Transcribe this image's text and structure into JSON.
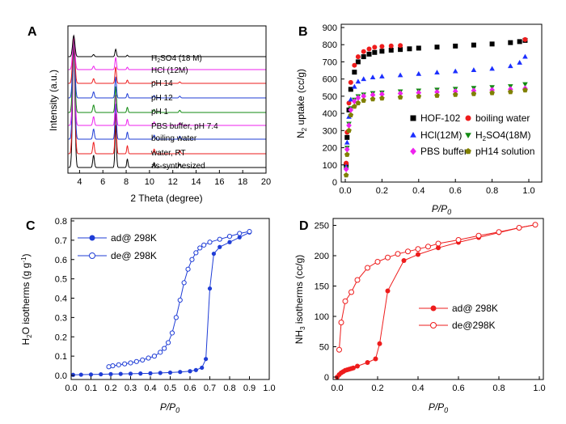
{
  "colors": {
    "black": "#000000",
    "red": "#ee1c1c",
    "blue": "#1f3dd6",
    "bright_blue": "#1c2fff",
    "green": "#118a11",
    "magenta": "#ee22ee",
    "olive": "#808000"
  },
  "chart_data": [
    {
      "panel": "A",
      "type": "line",
      "xlabel": "2 Theta (degree)",
      "ylabel": "Intensity (a.u.)",
      "xlim": [
        3,
        20
      ],
      "xticks": [
        4,
        6,
        8,
        10,
        12,
        14,
        16,
        18,
        20
      ],
      "peaks": [
        {
          "x": 3.5,
          "height": 100
        },
        {
          "x": 5.2,
          "height": 10
        },
        {
          "x": 7.1,
          "height": 35
        },
        {
          "x": 8.1,
          "height": 7
        },
        {
          "x": 10.4,
          "height": 4
        },
        {
          "x": 12.6,
          "height": 3
        }
      ],
      "series": [
        {
          "name": "as-synthesized",
          "color": "#000000"
        },
        {
          "name": "water, RT",
          "color": "#ee1c1c"
        },
        {
          "name": "boiling water",
          "color": "#1f3dd6"
        },
        {
          "name": "PBS buffer, pH 7.4",
          "color": "#ee22ee"
        },
        {
          "name": "pH 1",
          "color": "#118a11"
        },
        {
          "name": "pH 12",
          "color": "#1f3dd6"
        },
        {
          "name": "pH 14",
          "color": "#ee1c1c"
        },
        {
          "name": "HCl (12M)",
          "color": "#ee22ee"
        },
        {
          "name": "H2SO4 (18 M)",
          "color": "#000000"
        }
      ]
    },
    {
      "panel": "B",
      "type": "scatter",
      "xlabel": "P/P0",
      "ylabel": "N2 uptake (cc/g)",
      "xlim": [
        0,
        1.0
      ],
      "ylim": [
        0,
        900
      ],
      "xticks": [
        0.0,
        0.2,
        0.4,
        0.6,
        0.8,
        1.0
      ],
      "yticks": [
        0,
        100,
        200,
        300,
        400,
        500,
        600,
        700,
        800,
        900
      ],
      "series": [
        {
          "name": "HOF-102",
          "marker": "square",
          "color": "#000000",
          "x": [
            0.005,
            0.01,
            0.02,
            0.03,
            0.05,
            0.07,
            0.1,
            0.13,
            0.16,
            0.2,
            0.25,
            0.3,
            0.35,
            0.4,
            0.5,
            0.6,
            0.7,
            0.8,
            0.9,
            0.95,
            0.98
          ],
          "y": [
            100,
            260,
            420,
            540,
            640,
            700,
            730,
            745,
            755,
            762,
            768,
            772,
            776,
            780,
            786,
            792,
            798,
            804,
            812,
            818,
            825
          ]
        },
        {
          "name": "boiling water",
          "marker": "circle",
          "color": "#ee1c1c",
          "x": [
            0.005,
            0.01,
            0.02,
            0.03,
            0.05,
            0.07,
            0.1,
            0.13,
            0.16,
            0.2,
            0.25,
            0.3,
            0.98
          ],
          "y": [
            110,
            290,
            460,
            580,
            680,
            730,
            760,
            775,
            785,
            790,
            793,
            795,
            830
          ]
        },
        {
          "name": "HCl(12M)",
          "marker": "triangle-up",
          "color": "#1c2fff",
          "x": [
            0.005,
            0.01,
            0.02,
            0.03,
            0.05,
            0.07,
            0.1,
            0.15,
            0.2,
            0.3,
            0.4,
            0.5,
            0.6,
            0.7,
            0.8,
            0.9,
            0.95,
            0.98
          ],
          "y": [
            90,
            230,
            380,
            480,
            555,
            585,
            600,
            610,
            615,
            622,
            630,
            638,
            645,
            652,
            660,
            675,
            695,
            730
          ]
        },
        {
          "name": "H2SO4(18M)",
          "marker": "triangle-down",
          "color": "#118a11",
          "x": [
            0.005,
            0.01,
            0.02,
            0.03,
            0.05,
            0.07,
            0.1,
            0.15,
            0.2,
            0.3,
            0.4,
            0.5,
            0.6,
            0.7,
            0.8,
            0.9,
            0.98
          ],
          "y": [
            80,
            200,
            340,
            430,
            480,
            500,
            510,
            518,
            522,
            528,
            533,
            538,
            543,
            548,
            553,
            558,
            570
          ]
        },
        {
          "name": "PBS buffer",
          "marker": "diamond",
          "color": "#ee22ee",
          "x": [
            0.005,
            0.01,
            0.02,
            0.03,
            0.05,
            0.07,
            0.1,
            0.15,
            0.2,
            0.3,
            0.4,
            0.5,
            0.6,
            0.7,
            0.8,
            0.9,
            0.98
          ],
          "y": [
            75,
            190,
            330,
            420,
            470,
            490,
            500,
            507,
            511,
            516,
            520,
            524,
            528,
            532,
            536,
            540,
            545
          ]
        },
        {
          "name": "pH14 solution",
          "marker": "pentagon",
          "color": "#808000",
          "x": [
            0.005,
            0.01,
            0.02,
            0.03,
            0.05,
            0.07,
            0.1,
            0.15,
            0.2,
            0.3,
            0.4,
            0.5,
            0.6,
            0.7,
            0.8,
            0.9,
            0.98
          ],
          "y": [
            40,
            160,
            300,
            390,
            440,
            460,
            475,
            483,
            488,
            494,
            499,
            504,
            509,
            514,
            519,
            525,
            535
          ]
        }
      ],
      "legend_position": "bottom-right"
    },
    {
      "panel": "C",
      "type": "line",
      "xlabel": "P/P0",
      "ylabel": "H2O isotherms (g g-1)",
      "xlim": [
        0,
        1.0
      ],
      "ylim": [
        0,
        0.8
      ],
      "xticks": [
        0.0,
        0.1,
        0.2,
        0.3,
        0.4,
        0.5,
        0.6,
        0.7,
        0.8,
        0.9,
        1.0
      ],
      "yticks": [
        0.0,
        0.1,
        0.2,
        0.3,
        0.4,
        0.5,
        0.6,
        0.7,
        0.8
      ],
      "series": [
        {
          "name": "ad@ 298K",
          "marker": "filled-circle",
          "color": "#1f3dd6",
          "x": [
            0.01,
            0.05,
            0.1,
            0.15,
            0.2,
            0.25,
            0.3,
            0.35,
            0.4,
            0.45,
            0.5,
            0.55,
            0.6,
            0.63,
            0.66,
            0.68,
            0.7,
            0.72,
            0.75,
            0.8,
            0.85,
            0.9
          ],
          "y": [
            0.003,
            0.004,
            0.005,
            0.006,
            0.007,
            0.008,
            0.009,
            0.01,
            0.011,
            0.013,
            0.015,
            0.018,
            0.022,
            0.028,
            0.04,
            0.085,
            0.45,
            0.63,
            0.665,
            0.69,
            0.715,
            0.74
          ]
        },
        {
          "name": "de@ 298K",
          "marker": "open-circle",
          "color": "#1f3dd6",
          "x": [
            0.9,
            0.85,
            0.8,
            0.75,
            0.7,
            0.67,
            0.65,
            0.63,
            0.61,
            0.59,
            0.57,
            0.55,
            0.53,
            0.51,
            0.49,
            0.47,
            0.45,
            0.42,
            0.39,
            0.36,
            0.33,
            0.3,
            0.27,
            0.24,
            0.21,
            0.19
          ],
          "y": [
            0.745,
            0.735,
            0.72,
            0.705,
            0.69,
            0.675,
            0.66,
            0.635,
            0.6,
            0.55,
            0.48,
            0.39,
            0.3,
            0.22,
            0.17,
            0.14,
            0.12,
            0.1,
            0.09,
            0.08,
            0.072,
            0.065,
            0.06,
            0.055,
            0.05,
            0.045
          ]
        }
      ],
      "legend_position": "top-left"
    },
    {
      "panel": "D",
      "type": "line",
      "xlabel": "P/P0",
      "ylabel": "NH3 isotherms (cc/g)",
      "xlim": [
        0,
        1.0
      ],
      "ylim": [
        0,
        260
      ],
      "xticks": [
        0.0,
        0.2,
        0.4,
        0.6,
        0.8,
        1.0
      ],
      "yticks": [
        0,
        50,
        100,
        150,
        200,
        250
      ],
      "series": [
        {
          "name": "ad@ 298K",
          "marker": "filled-circle",
          "color": "#ee1c1c",
          "x": [
            0.0,
            0.01,
            0.02,
            0.03,
            0.04,
            0.05,
            0.06,
            0.07,
            0.08,
            0.1,
            0.15,
            0.19,
            0.21,
            0.25,
            0.33,
            0.4,
            0.5,
            0.6,
            0.7,
            0.8,
            0.9,
            0.98
          ],
          "y": [
            0,
            4,
            7,
            9,
            11,
            12,
            13,
            14,
            15,
            18,
            24,
            30,
            55,
            142,
            192,
            202,
            213,
            222,
            230,
            238,
            246,
            251
          ]
        },
        {
          "name": "de@298K",
          "marker": "open-circle",
          "color": "#ee1c1c",
          "x": [
            0.98,
            0.9,
            0.8,
            0.7,
            0.6,
            0.5,
            0.45,
            0.4,
            0.35,
            0.3,
            0.25,
            0.2,
            0.15,
            0.1,
            0.07,
            0.04,
            0.02,
            0.01
          ],
          "y": [
            251,
            246,
            239,
            233,
            226,
            220,
            215,
            211,
            207,
            203,
            197,
            190,
            180,
            160,
            140,
            125,
            90,
            45
          ]
        }
      ],
      "legend_position": "center-right"
    }
  ]
}
